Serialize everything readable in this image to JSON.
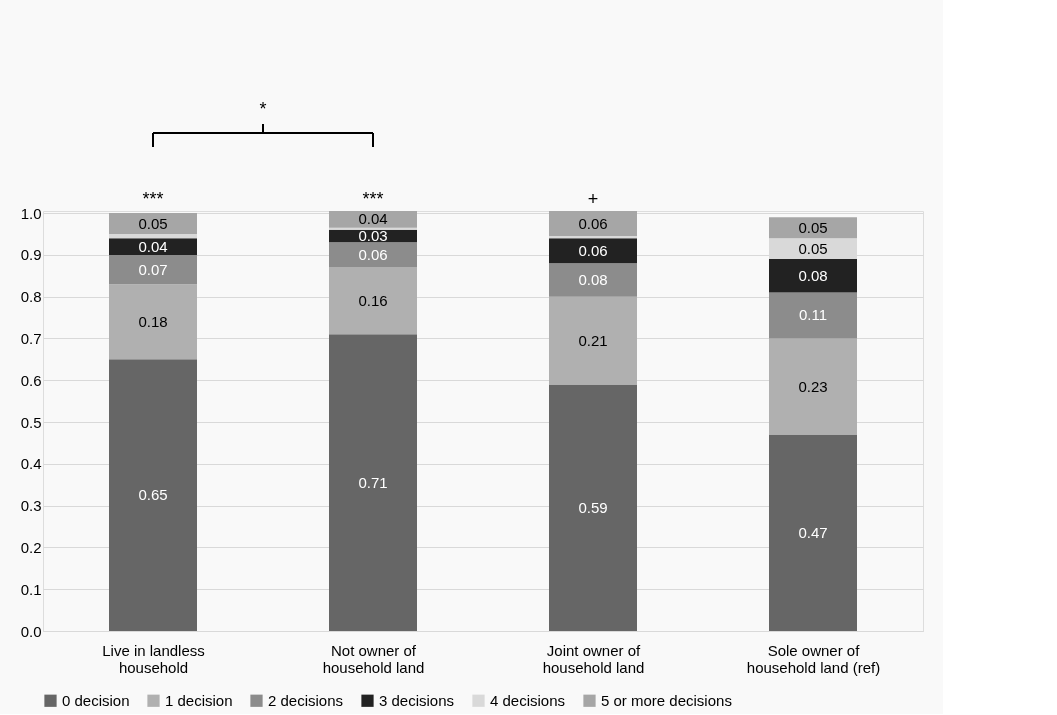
{
  "chart_data": {
    "type": "bar",
    "stacked": true,
    "categories": [
      "Live in landless household",
      "Not owner of household land",
      "Joint owner of household land",
      "Sole owner of household land (ref)"
    ],
    "series": [
      {
        "name": "0 decision",
        "color": "#666666",
        "values": [
          0.65,
          0.71,
          0.59,
          0.47
        ],
        "value_labels": [
          "0.65",
          "0.71",
          "0.59",
          "0.47"
        ]
      },
      {
        "name": "1 decision",
        "color": "#b0b0b0",
        "values": [
          0.18,
          0.16,
          0.21,
          0.23
        ],
        "value_labels": [
          "0.18",
          "0.16",
          "0.21",
          "0.23"
        ]
      },
      {
        "name": "2 decisions",
        "color": "#8c8c8c",
        "values": [
          0.07,
          0.06,
          0.08,
          0.11
        ],
        "value_labels": [
          "0.07",
          "0.06",
          "0.08",
          "0.11"
        ]
      },
      {
        "name": "3 decisions",
        "color": "#222222",
        "values": [
          0.04,
          0.03,
          0.06,
          0.08
        ],
        "value_labels": [
          "0.04",
          "0.03",
          "0.06",
          "0.08"
        ]
      },
      {
        "name": "4 decisions",
        "color": "#d9d9d9",
        "values": [
          0.01,
          0.005,
          0.005,
          0.05
        ],
        "value_labels": [
          null,
          null,
          null,
          "0.05"
        ]
      },
      {
        "name": "5 or more decisions",
        "color": "#a6a6a6",
        "values": [
          0.05,
          0.04,
          0.06,
          0.05
        ],
        "value_labels": [
          "0.05",
          "0.04",
          "0.06",
          "0.05"
        ]
      }
    ],
    "ylim": [
      0,
      1.005
    ],
    "yticks": [
      {
        "value": 0,
        "label": "0.0"
      },
      0.1,
      0.2,
      0.3,
      0.4,
      0.5,
      0.6,
      0.7,
      0.8,
      0.9,
      {
        "value": 1.0,
        "label": "1.0"
      }
    ],
    "grid": "y",
    "legend": "bottom",
    "annotations": [
      {
        "text": "***",
        "x": "Live in landless household",
        "y": 1.0
      },
      {
        "text": "***",
        "x": "Not owner of household land",
        "y": 1.0
      },
      {
        "text": "+",
        "x": "Joint owner of household land",
        "y": 1.0
      },
      "*"
    ]
  }
}
